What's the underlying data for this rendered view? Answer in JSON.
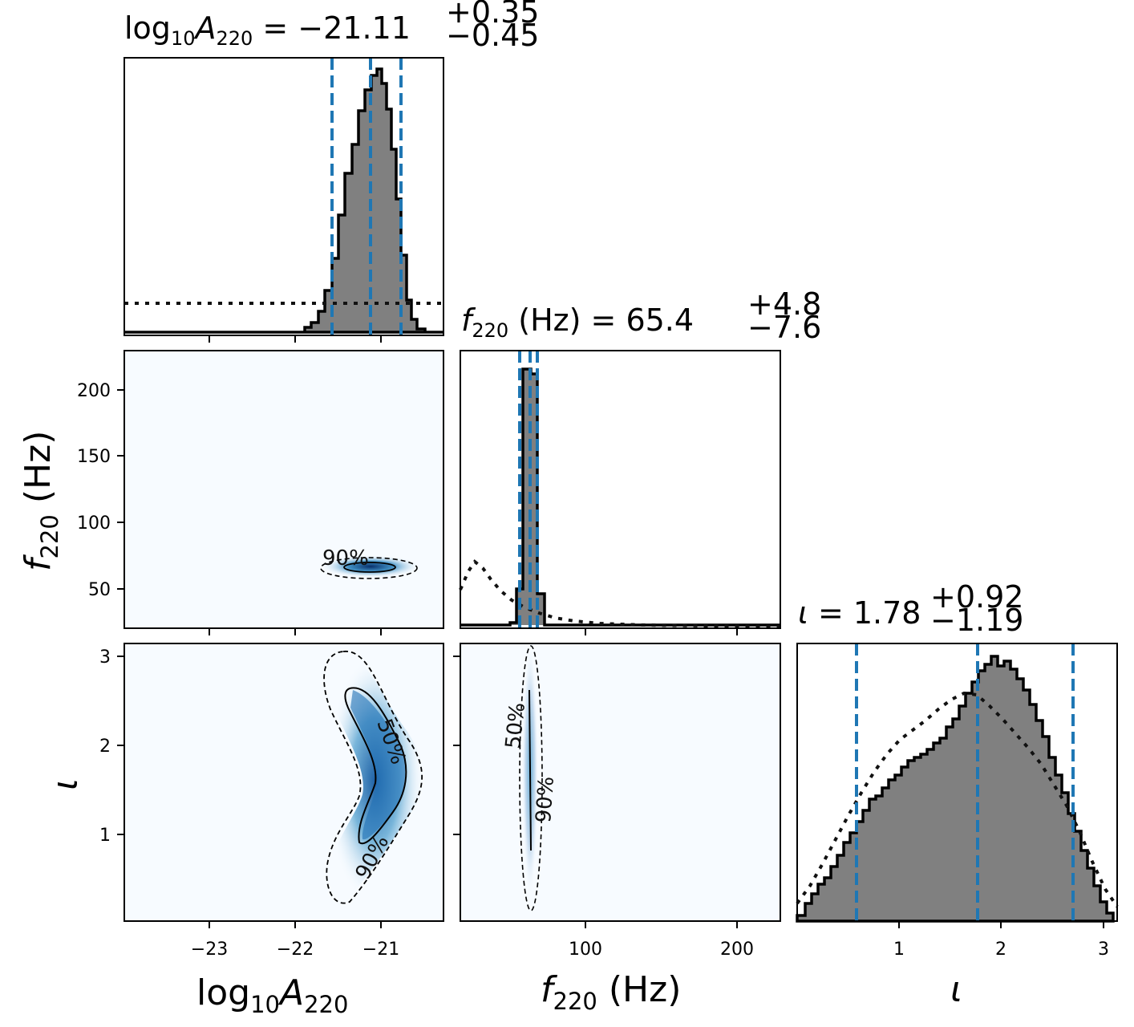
{
  "titles": {
    "p00": {
      "base": "log",
      "base_sub": "10",
      "sym": "A",
      "sym_sub": "220",
      "eq": " = −21.11",
      "sup": "+0.35",
      "sub": "−0.45"
    },
    "p11": {
      "sym": "f",
      "sym_sub": "220",
      "unit": " (Hz) = 65.4",
      "sup": "+4.8",
      "sub": "−7.6"
    },
    "p22": {
      "sym": "ι",
      "eq": " = 1.78",
      "sup": "+0.92",
      "sub": "−1.19"
    }
  },
  "axis_titles": {
    "x0": {
      "base": "log",
      "base_sub": "10",
      "sym": "A",
      "sym_sub": "220"
    },
    "x1": {
      "sym": "f",
      "sym_sub": "220",
      "unit": " (Hz)"
    },
    "x2": {
      "sym": "ι"
    },
    "y1": {
      "sym": "f",
      "sym_sub": "220",
      "unit": " (Hz)"
    },
    "y2": {
      "sym": "ι"
    }
  },
  "colors": {
    "hist_fill": "#808080",
    "quantile_line": "#1f77b4",
    "density_high": "#08306b",
    "density_low": "#f7fbff"
  },
  "chart_data": [
    {
      "type": "histogram",
      "panel": "marginal log10A220",
      "xlim": [
        -23.9,
        -20.35
      ],
      "median": -21.11,
      "lower_quantile": -21.56,
      "upper_quantile": -20.76,
      "posterior": {
        "x": [
          -22.1,
          -22.0,
          -21.9,
          -21.8,
          -21.7,
          -21.6,
          -21.5,
          -21.4,
          -21.3,
          -21.2,
          -21.1,
          -21.0,
          -20.9,
          -20.8,
          -20.7,
          -20.6,
          -20.5,
          -20.4
        ],
        "density": [
          0.01,
          0.03,
          0.06,
          0.12,
          0.2,
          0.34,
          0.52,
          0.68,
          0.82,
          0.93,
          0.98,
          0.9,
          0.7,
          0.44,
          0.2,
          0.07,
          0.02,
          0.01
        ]
      },
      "prior": {
        "x_range": [
          -23.9,
          -20.35
        ],
        "level": 0.11
      }
    },
    {
      "type": "histogram",
      "panel": "marginal f220 (Hz)",
      "xlim": [
        20,
        230
      ],
      "median": 65.4,
      "lower_quantile": 57.8,
      "upper_quantile": 70.2,
      "posterior": {
        "x": [
          50,
          58,
          64,
          70,
          75,
          80,
          100,
          150,
          200,
          230
        ],
        "density": [
          0.01,
          0.1,
          0.98,
          0.95,
          0.1,
          0.01,
          0.005,
          0.003,
          0.003,
          0.003
        ]
      },
      "prior": {
        "x": [
          20,
          30,
          40,
          50,
          60,
          70,
          80,
          100,
          120,
          150,
          180,
          230
        ],
        "density": [
          0.15,
          0.26,
          0.2,
          0.14,
          0.1,
          0.07,
          0.05,
          0.03,
          0.015,
          0.008,
          0.004,
          0.002
        ]
      }
    },
    {
      "type": "histogram",
      "panel": "marginal iota",
      "xlim": [
        0.02,
        3.14
      ],
      "median": 1.78,
      "lower_quantile": 0.59,
      "upper_quantile": 2.7,
      "posterior": {
        "x": [
          0.0,
          0.2,
          0.4,
          0.6,
          0.8,
          1.0,
          1.2,
          1.4,
          1.6,
          1.8,
          1.9,
          2.0,
          2.2,
          2.4,
          2.6,
          2.8,
          3.0,
          3.14
        ],
        "density": [
          0.02,
          0.07,
          0.16,
          0.29,
          0.4,
          0.46,
          0.55,
          0.62,
          0.71,
          0.84,
          0.97,
          0.98,
          0.93,
          0.78,
          0.58,
          0.37,
          0.15,
          0.03
        ]
      },
      "prior": {
        "x": [
          0.0,
          0.2,
          0.4,
          0.6,
          0.8,
          1.0,
          1.2,
          1.4,
          1.6,
          1.8,
          2.0,
          2.2,
          2.4,
          2.6,
          2.8,
          3.0,
          3.14
        ],
        "density": [
          0.04,
          0.17,
          0.32,
          0.47,
          0.6,
          0.72,
          0.8,
          0.86,
          0.83,
          0.78,
          0.71,
          0.62,
          0.5,
          0.36,
          0.23,
          0.1,
          0.04
        ]
      }
    },
    {
      "type": "heatmap",
      "panel": "log10A220 vs f220 (Hz)",
      "xlim": [
        -23.9,
        -20.35
      ],
      "ylim": [
        20,
        230
      ],
      "peak": {
        "x": -21.05,
        "y": 66
      },
      "contour_labels": [
        "90%"
      ]
    },
    {
      "type": "heatmap",
      "panel": "log10A220 vs iota",
      "xlim": [
        -23.9,
        -20.35
      ],
      "ylim": [
        0.02,
        3.14
      ],
      "peak": {
        "x": -20.95,
        "y": 1.75
      },
      "contour_labels": [
        "50%",
        "90%"
      ]
    },
    {
      "type": "heatmap",
      "panel": "f220 (Hz) vs iota",
      "xlim": [
        20,
        230
      ],
      "ylim": [
        0.02,
        3.14
      ],
      "peak": {
        "x": 65,
        "y": 1.9
      },
      "contour_labels": [
        "50%",
        "90%"
      ]
    }
  ],
  "ticks": {
    "x_logA": [
      {
        "v": -23,
        "label": "−23"
      },
      {
        "v": -22,
        "label": "−22"
      },
      {
        "v": -21,
        "label": "−21"
      }
    ],
    "x_f": [
      {
        "v": 100,
        "label": "100"
      },
      {
        "v": 200,
        "label": "200"
      }
    ],
    "y_f": [
      {
        "v": 200,
        "label": "200"
      },
      {
        "v": 150,
        "label": "150"
      },
      {
        "v": 100,
        "label": "100"
      },
      {
        "v": 50,
        "label": "50"
      }
    ],
    "iota": [
      {
        "v": 1,
        "label": "1"
      },
      {
        "v": 2,
        "label": "2"
      },
      {
        "v": 3,
        "label": "3"
      }
    ]
  },
  "contour_text": {
    "p10_90": "90%",
    "p20_50": "50%",
    "p20_90": "90%",
    "p21_50": "50%",
    "p21_90": "90%"
  }
}
